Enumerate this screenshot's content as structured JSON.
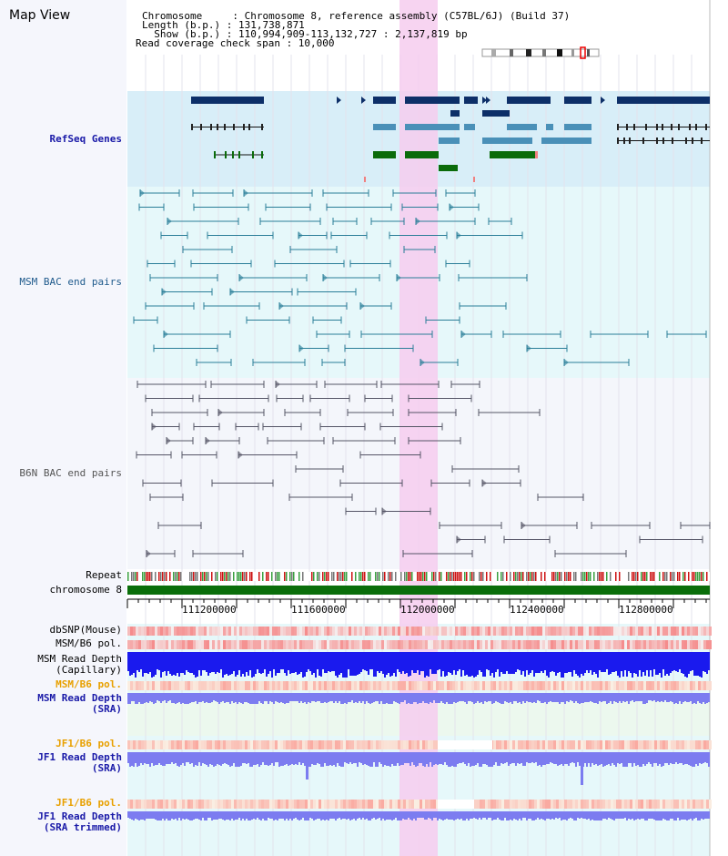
{
  "title": "Map View",
  "header": {
    "chromosome": "Chromosome     : Chromosome 8, reference assembly (C57BL/6J) (Build 37)",
    "length": "Length (b.p.) : 131,738,871",
    "show": "  Show (b.p.) : 110,994,909-113,132,727 : 2,137,819 bp",
    "read_coverage": "Read coverage check span : 10,000"
  },
  "tracks": {
    "refseq": "RefSeq Genes",
    "msm_bac": "MSM BAC end pairs",
    "b6n_bac": "B6N BAC end pairs",
    "repeat": "Repeat",
    "chromosome": "chromosome 8",
    "dbsnp": "dbSNP(Mouse)",
    "msm_b6_pol": "MSM/B6 pol.",
    "msm_read_depth_cap_1": "MSM Read Depth",
    "msm_read_depth_cap_2": "(Capillary)",
    "msm_b6_pol_2": "MSM/B6 pol.",
    "msm_read_depth_sra_1": "MSM Read Depth",
    "msm_read_depth_sra_2": "(SRA)",
    "jf1_b6_pol": "JF1/B6 pol.",
    "jf1_read_depth_1": "JF1 Read Depth",
    "jf1_read_depth_2": "(SRA)",
    "jf1_b6_pol_2": "JF1/B6 pol.",
    "jf1_trim_1": "JF1 Read Depth",
    "jf1_trim_2": "(SRA trimmed)"
  },
  "axis_ticks": [
    "111200000",
    "111600000",
    "112000000",
    "112400000",
    "112800000"
  ],
  "colors": {
    "refseq_bg": "#d8eef8",
    "bac_bg": "#e6f8fa",
    "highlight": "#f6ccee",
    "gene_dark": "#0d2f68",
    "gene_light": "#4a90b8",
    "gene_green": "#0a6b0a",
    "chromosome_bar": "#0a6e0a",
    "depth_blue": "#1a1aee",
    "depth_light": "#7c7cf0",
    "pol_red": "#f06060"
  }
}
